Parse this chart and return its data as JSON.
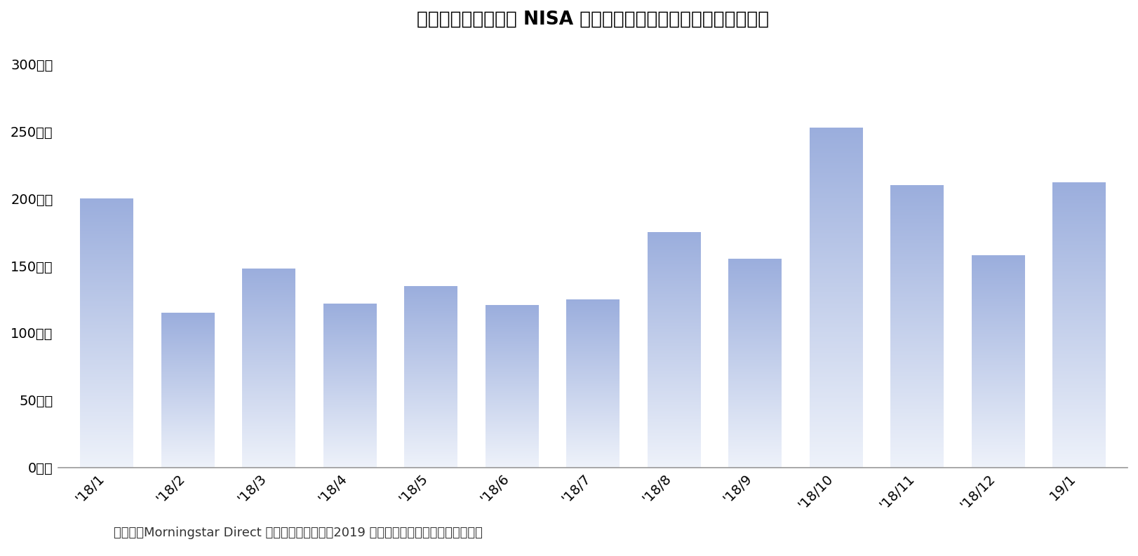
{
  "categories": [
    "'18/1",
    "'18/2",
    "'18/3",
    "'18/4",
    "'18/5",
    "'18/6",
    "'18/7",
    "'18/8",
    "'18/9",
    "'18/10",
    "'18/11",
    "'18/12",
    "19/1"
  ],
  "values": [
    200,
    115,
    148,
    122,
    135,
    121,
    125,
    175,
    155,
    253,
    210,
    158,
    212
  ],
  "title": "》図表３「つみたて NISA 対象の外国株式ファンドの資金流出入",
  "title_full": "》図表３「 つみたて NISA 対象の外国株式ファンドの資金流出入",
  "yticks": [
    0,
    50,
    100,
    150,
    200,
    250,
    300
  ],
  "ytick_labels": [
    "0億円",
    "50億円",
    "100億円",
    "150億円",
    "200億円",
    "250億円",
    "300億円"
  ],
  "ylim": [
    0,
    315
  ],
  "bar_color_top": "#9BAEDD",
  "bar_color_bottom": "#EEF2FA",
  "bar_width": 0.65,
  "footnote": "（資料）Morningstar Direct を用いて筆者作成　2019 年１月のみ推計値、他は実績値。",
  "bg_color": "#FFFFFF",
  "axis_line_color": "#999999",
  "title_fontsize": 19,
  "tick_fontsize": 14,
  "footnote_fontsize": 13
}
